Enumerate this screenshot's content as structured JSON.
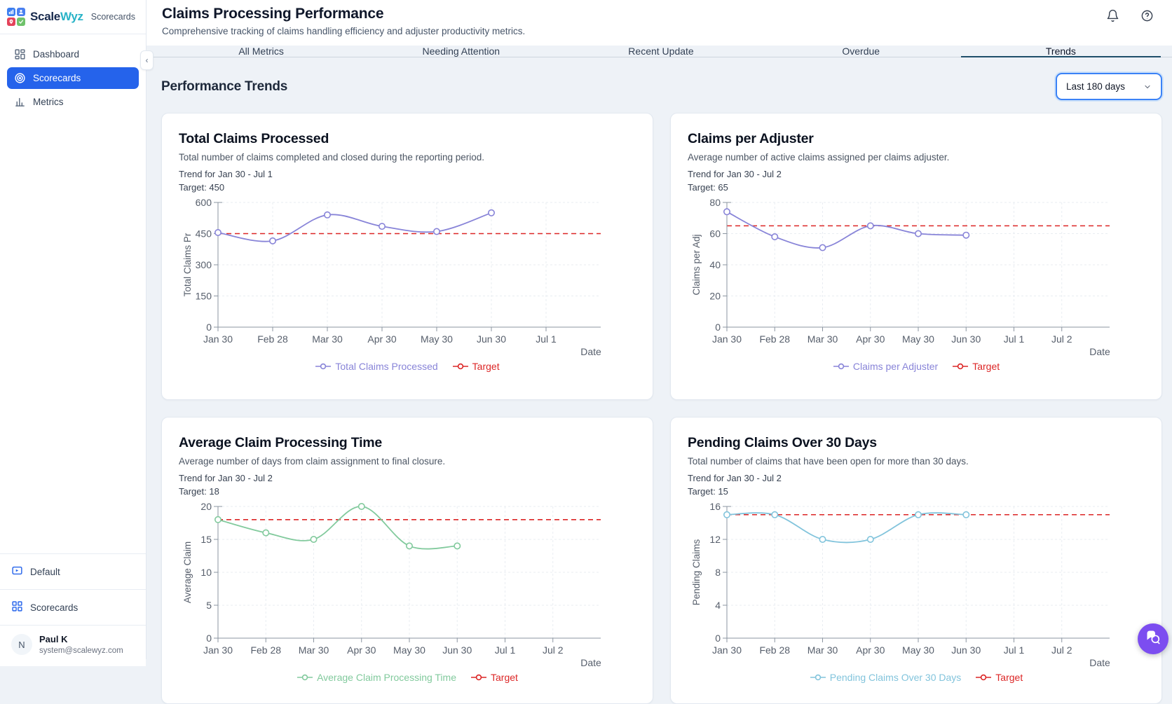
{
  "app": {
    "logo_scale": "Scale",
    "logo_wyz": "Wyz",
    "logo_suffix": "Scorecards"
  },
  "sidebar": {
    "items": [
      {
        "label": "Dashboard",
        "icon": "dashboard-icon",
        "active": false
      },
      {
        "label": "Scorecards",
        "icon": "target-icon",
        "active": true
      },
      {
        "label": "Metrics",
        "icon": "bar-chart-icon",
        "active": false
      }
    ],
    "collapse_glyph": "‹",
    "workspace_label": "Default",
    "bottom_nav_label": "Scorecards",
    "user": {
      "avatar_initial": "N",
      "name": "Paul K",
      "email": "system@scalewyz.com"
    }
  },
  "header": {
    "title": "Claims Processing Performance",
    "subtitle": "Comprehensive tracking of claims handling efficiency and adjuster productivity metrics.",
    "icons": [
      "notifications-icon",
      "help-icon"
    ]
  },
  "tabs": [
    {
      "label": "All Metrics",
      "active": false
    },
    {
      "label": "Needing Attention",
      "active": false
    },
    {
      "label": "Recent Update",
      "active": false
    },
    {
      "label": "Overdue",
      "active": false
    },
    {
      "label": "Trends",
      "active": true
    }
  ],
  "trends_section": {
    "heading": "Performance Trends",
    "range_selected": "Last 180 days"
  },
  "colors": {
    "accent_blue": "#2563eb",
    "logo_navy": "#182a4d",
    "logo_teal": "#29b3c7",
    "target_red": "#dc2626",
    "series_purple": "#8884d8",
    "series_green": "#82ca9d",
    "series_cyan": "#82c4dc",
    "chat_purple": "#7c4df0",
    "tab_underline": "#1f4e6a"
  },
  "chart_data": [
    {
      "type": "line",
      "title": "Total Claims Processed",
      "description": "Total number of claims completed and closed during the reporting period.",
      "trend_label": "Trend for Jan 30 - Jul 1",
      "target_label": "Target: 450",
      "target": 450,
      "series_name": "Total Claims Processed",
      "legend": [
        "Total Claims Processed",
        "Target"
      ],
      "ylabel": "Total Claims Pr",
      "xlabel": "Date",
      "x_ticks": [
        "Jan 30",
        "Feb 28",
        "Mar 30",
        "Apr 30",
        "May 30",
        "Jun 30",
        "Jul 1"
      ],
      "y_ticks": [
        0,
        150,
        300,
        450,
        600
      ],
      "ylim": [
        0,
        600
      ],
      "categories": [
        "Jan 30",
        "Feb 28",
        "Mar 30",
        "Apr 30",
        "May 30",
        "Jun 30"
      ],
      "values": [
        455,
        415,
        540,
        485,
        460,
        550
      ],
      "line_color": "#8884d8",
      "target_color": "#dc2626",
      "grid": true,
      "legend_position": "bottom",
      "tall": false
    },
    {
      "type": "line",
      "title": "Claims per Adjuster",
      "description": "Average number of active claims assigned per claims adjuster.",
      "trend_label": "Trend for Jan 30 - Jul 2",
      "target_label": "Target: 65",
      "target": 65,
      "series_name": "Claims per Adjuster",
      "legend": [
        "Claims per Adjuster",
        "Target"
      ],
      "ylabel": "Claims per Adj",
      "xlabel": "Date",
      "x_ticks": [
        "Jan 30",
        "Feb 28",
        "Mar 30",
        "Apr 30",
        "May 30",
        "Jun 30",
        "Jul 1",
        "Jul 2"
      ],
      "y_ticks": [
        0,
        20,
        40,
        60,
        80
      ],
      "ylim": [
        0,
        80
      ],
      "categories": [
        "Jan 30",
        "Feb 28",
        "Mar 30",
        "Apr 30",
        "May 30",
        "Jun 30"
      ],
      "values": [
        74,
        58,
        51,
        65,
        60,
        59
      ],
      "line_color": "#8884d8",
      "target_color": "#dc2626",
      "grid": true,
      "legend_position": "bottom",
      "tall": false
    },
    {
      "type": "line",
      "title": "Average Claim Processing Time",
      "description": "Average number of days from claim assignment to final closure.",
      "trend_label": "Trend for Jan 30 - Jul 2",
      "target_label": "Target: 18",
      "target": 18,
      "series_name": "Average Claim Processing Time",
      "legend": [
        "Average Claim Processing Time",
        "Target"
      ],
      "ylabel": "Average Claim",
      "xlabel": "Date",
      "x_ticks": [
        "Jan 30",
        "Feb 28",
        "Mar 30",
        "Apr 30",
        "May 30",
        "Jun 30",
        "Jul 1",
        "Jul 2"
      ],
      "y_ticks": [
        0,
        5,
        10,
        15,
        20
      ],
      "ylim": [
        0,
        20
      ],
      "categories": [
        "Jan 30",
        "Feb 28",
        "Mar 30",
        "Apr 30",
        "May 30",
        "Jun 30"
      ],
      "values": [
        18,
        16,
        15,
        20,
        14,
        14
      ],
      "line_color": "#82ca9d",
      "target_color": "#dc2626",
      "grid": true,
      "legend_position": "bottom",
      "tall": true
    },
    {
      "type": "line",
      "title": "Pending Claims Over 30 Days",
      "description": "Total number of claims that have been open for more than 30 days.",
      "trend_label": "Trend for Jan 30 - Jul 2",
      "target_label": "Target: 15",
      "target": 15,
      "series_name": "Pending Claims Over 30 Days",
      "legend": [
        "Pending Claims Over 30 Days",
        "Target"
      ],
      "ylabel": "Pending Claims",
      "xlabel": "Date",
      "x_ticks": [
        "Jan 30",
        "Feb 28",
        "Mar 30",
        "Apr 30",
        "May 30",
        "Jun 30",
        "Jul 1",
        "Jul 2"
      ],
      "y_ticks": [
        0,
        4,
        8,
        12,
        16
      ],
      "ylim": [
        0,
        16
      ],
      "categories": [
        "Jan 30",
        "Feb 28",
        "Mar 30",
        "Apr 30",
        "May 30",
        "Jun 30"
      ],
      "values": [
        15,
        15,
        12,
        12,
        15,
        15
      ],
      "line_color": "#82c4dc",
      "target_color": "#dc2626",
      "grid": true,
      "legend_position": "bottom",
      "tall": true
    }
  ]
}
